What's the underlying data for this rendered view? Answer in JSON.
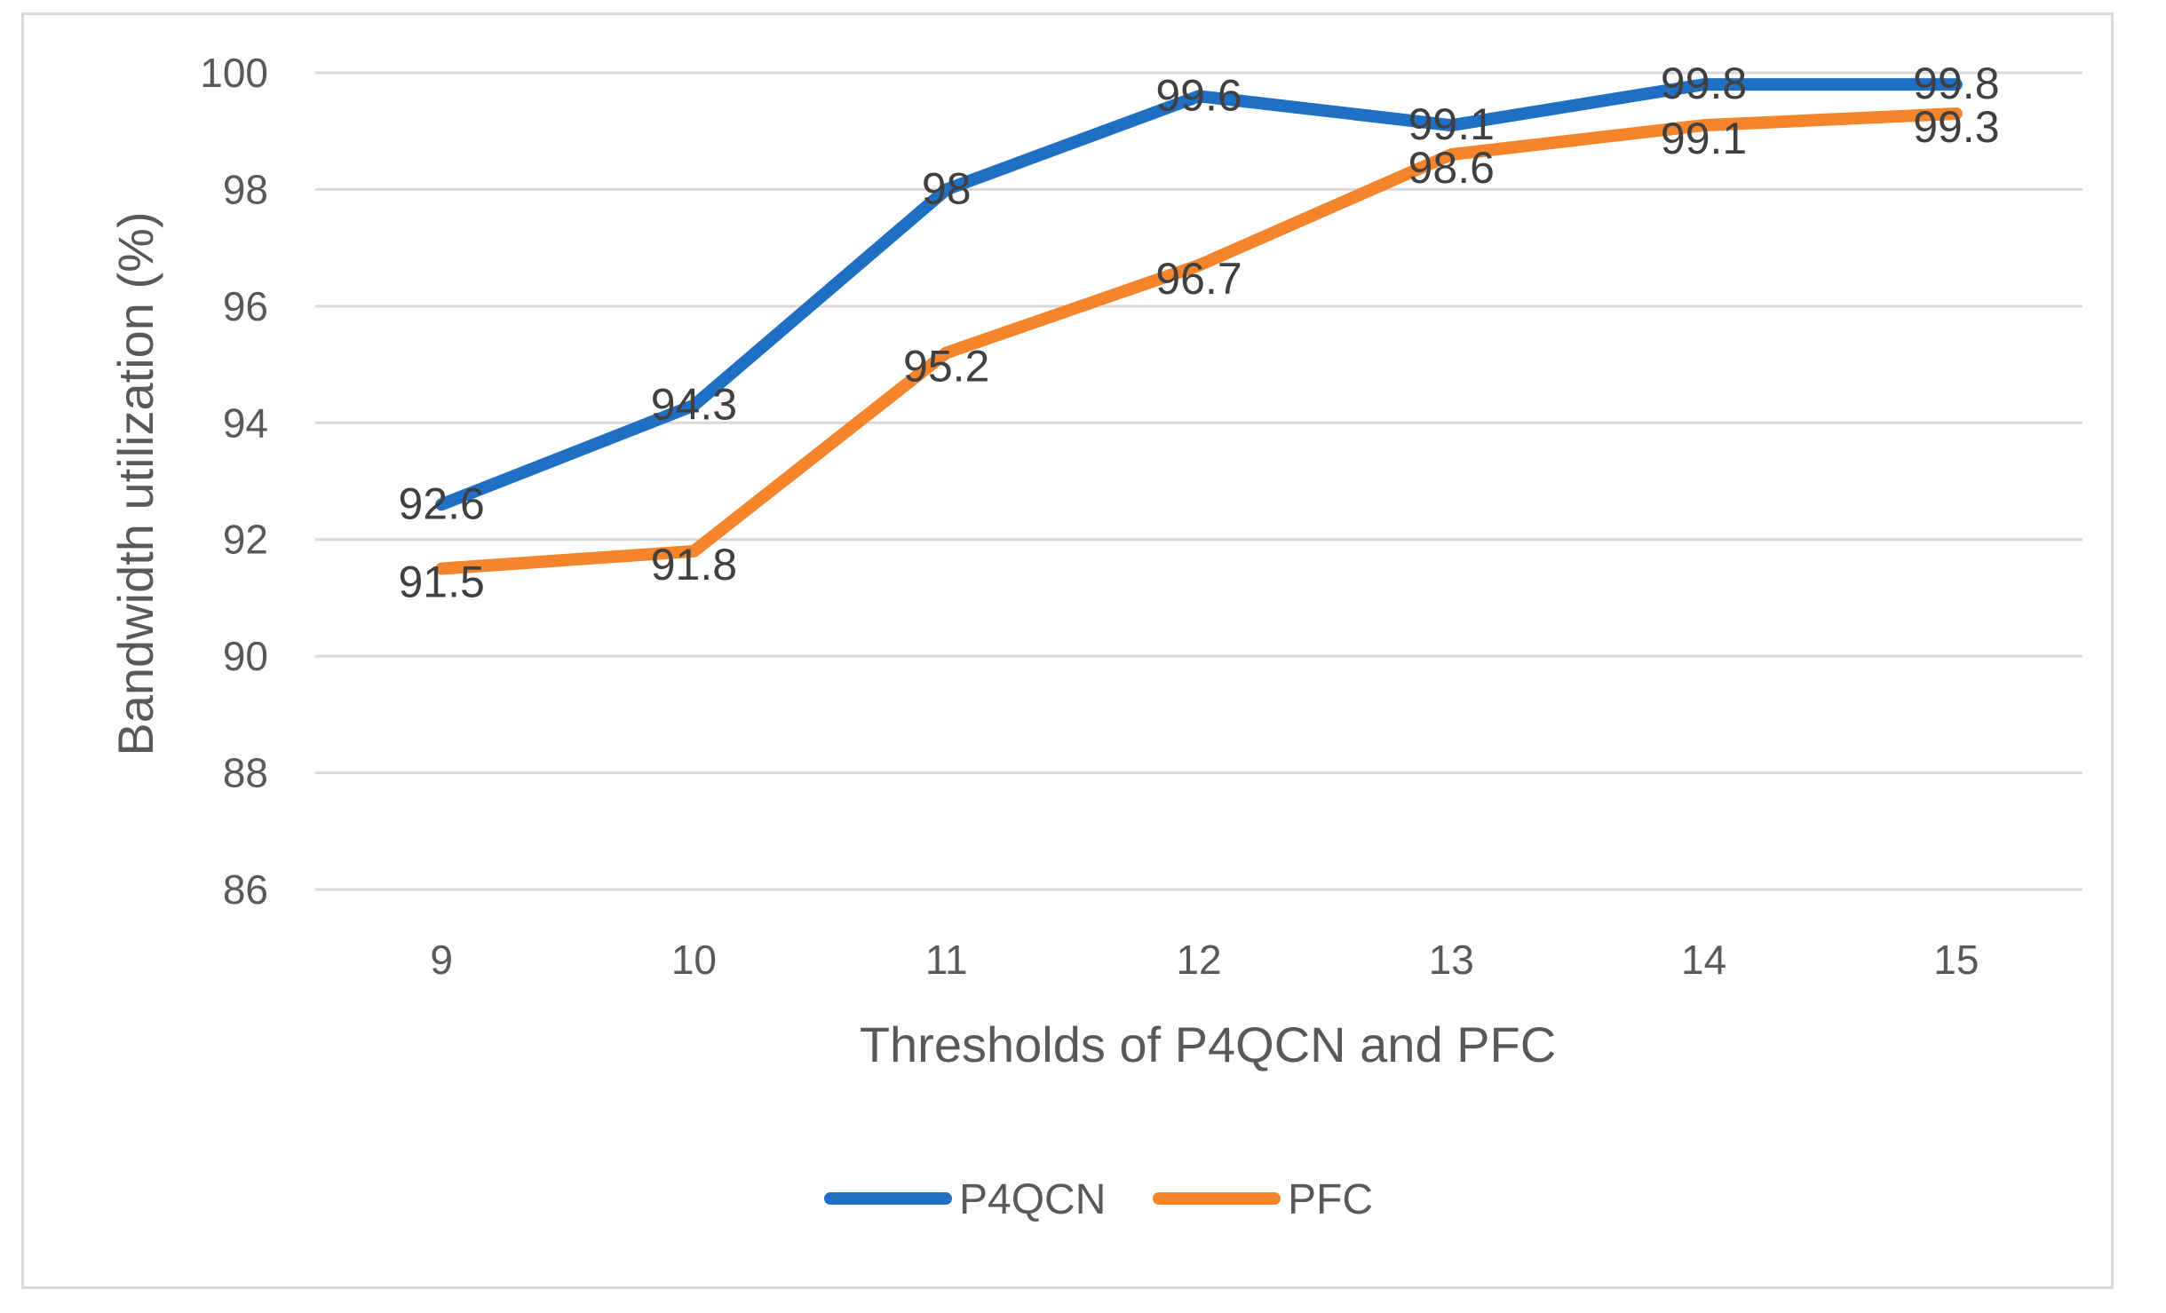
{
  "chart_data": {
    "type": "line",
    "title": "",
    "xlabel": "Thresholds of P4QCN and PFC",
    "ylabel": "Bandwidth utilization (%)",
    "categories": [
      "9",
      "10",
      "11",
      "12",
      "13",
      "14",
      "15"
    ],
    "ylim": [
      86,
      100
    ],
    "yticks": [
      86,
      88,
      90,
      92,
      94,
      96,
      98,
      100
    ],
    "grid": true,
    "legend_position": "bottom",
    "series": [
      {
        "name": "P4QCN",
        "color": "#1f6fc5",
        "values": [
          92.6,
          94.3,
          98,
          99.6,
          99.1,
          99.8,
          99.8
        ]
      },
      {
        "name": "PFC",
        "color": "#f5842b",
        "values": [
          91.5,
          91.8,
          95.2,
          96.7,
          98.6,
          99.1,
          99.3
        ]
      }
    ]
  }
}
